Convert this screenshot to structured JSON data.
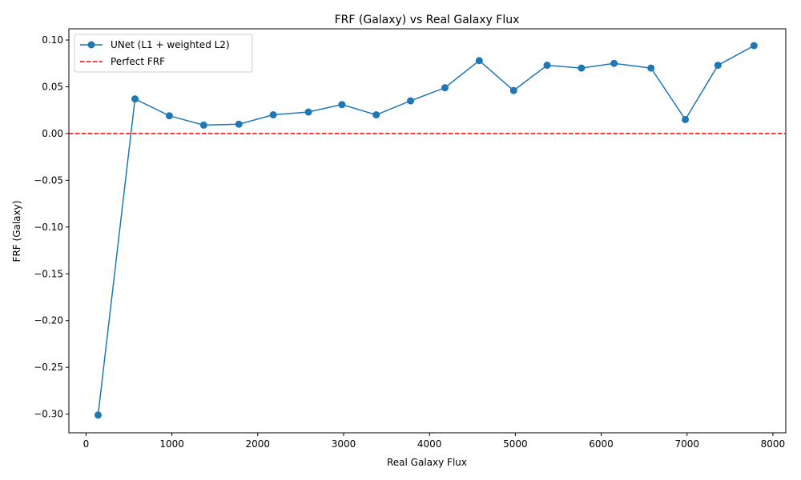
{
  "chart_data": {
    "type": "line",
    "title": "FRF (Galaxy) vs Real Galaxy Flux",
    "xlabel": "Real Galaxy Flux",
    "ylabel": "FRF (Galaxy)",
    "xlim": [
      -200,
      8150
    ],
    "ylim": [
      -0.32,
      0.112
    ],
    "xticks": [
      0,
      1000,
      2000,
      3000,
      4000,
      5000,
      6000,
      7000,
      8000
    ],
    "xtick_labels": [
      "0",
      "1000",
      "2000",
      "3000",
      "4000",
      "5000",
      "6000",
      "7000",
      "8000"
    ],
    "yticks": [
      -0.3,
      -0.25,
      -0.2,
      -0.15,
      -0.1,
      -0.05,
      0.0,
      0.05,
      0.1
    ],
    "ytick_labels": [
      "−0.30",
      "−0.25",
      "−0.20",
      "−0.15",
      "−0.10",
      "−0.05",
      "0.00",
      "0.05",
      "0.10"
    ],
    "grid": false,
    "legend_position": "top-left",
    "series": [
      {
        "name": "UNet (L1 + weighted L2)",
        "color": "#1f77b4",
        "marker": "circle",
        "x": [
          140,
          570,
          970,
          1370,
          1780,
          2180,
          2590,
          2980,
          3380,
          3780,
          4180,
          4580,
          4980,
          5370,
          5770,
          6150,
          6580,
          6980,
          7360,
          7780
        ],
        "y": [
          -0.301,
          0.037,
          0.019,
          0.009,
          0.01,
          0.02,
          0.023,
          0.031,
          0.02,
          0.035,
          0.049,
          0.078,
          0.046,
          0.073,
          0.07,
          0.075,
          0.07,
          0.015,
          0.073,
          0.094
        ]
      }
    ],
    "reference_lines": [
      {
        "name": "Perfect FRF",
        "y": 0.0,
        "color": "#ff0000",
        "style": "dashed"
      }
    ]
  }
}
